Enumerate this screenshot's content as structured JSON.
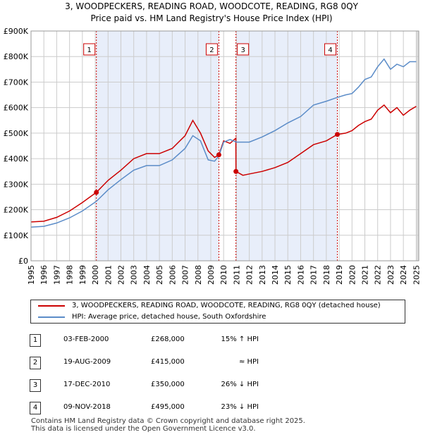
{
  "chart_data": {
    "type": "line",
    "title": "3, WOODPECKERS, READING ROAD, WOODCOTE, READING, RG8 0QY",
    "subtitle": "Price paid vs. HM Land Registry's House Price Index (HPI)",
    "ylim": [
      0,
      900000
    ],
    "xlim": [
      1995,
      2025.2
    ],
    "y_ticks": [
      {
        "value": 0,
        "label": "£0"
      },
      {
        "value": 100000,
        "label": "£100K"
      },
      {
        "value": 200000,
        "label": "£200K"
      },
      {
        "value": 300000,
        "label": "£300K"
      },
      {
        "value": 400000,
        "label": "£400K"
      },
      {
        "value": 500000,
        "label": "£500K"
      },
      {
        "value": 600000,
        "label": "£600K"
      },
      {
        "value": 700000,
        "label": "£700K"
      },
      {
        "value": 800000,
        "label": "£800K"
      },
      {
        "value": 900000,
        "label": "£900K"
      }
    ],
    "x_ticks": [
      "1995",
      "1996",
      "1997",
      "1998",
      "1999",
      "2000",
      "2001",
      "2002",
      "2003",
      "2004",
      "2005",
      "2006",
      "2007",
      "2008",
      "2009",
      "2010",
      "2011",
      "2012",
      "2013",
      "2014",
      "2015",
      "2016",
      "2017",
      "2018",
      "2019",
      "2020",
      "2021",
      "2022",
      "2023",
      "2024",
      "2025"
    ],
    "grid": true,
    "series": [
      {
        "name": "3, WOODPECKERS, READING ROAD, WOODCOTE, READING, RG8 0QY (detached house)",
        "color": "#cc0000",
        "x": [
          1995.0,
          1996.0,
          1997.0,
          1998.0,
          1999.0,
          2000.09,
          2001.0,
          2002.0,
          2003.0,
          2004.0,
          2005.0,
          2006.0,
          2007.0,
          2007.6,
          2008.2,
          2008.8,
          2009.3,
          2009.63,
          2010.0,
          2010.5,
          2010.95,
          2010.96,
          2011.5,
          2012.0,
          2013.0,
          2014.0,
          2015.0,
          2016.0,
          2017.0,
          2018.0,
          2018.86,
          2019.5,
          2020.0,
          2020.5,
          2021.0,
          2021.5,
          2022.0,
          2022.5,
          2023.0,
          2023.5,
          2024.0,
          2024.5,
          2025.0
        ],
        "y": [
          152000,
          155000,
          170000,
          195000,
          228000,
          268000,
          315000,
          355000,
          400000,
          420000,
          420000,
          440000,
          490000,
          550000,
          500000,
          430000,
          405000,
          415000,
          470000,
          460000,
          480000,
          350000,
          335000,
          340000,
          350000,
          365000,
          385000,
          420000,
          455000,
          470000,
          495000,
          500000,
          510000,
          530000,
          545000,
          555000,
          590000,
          610000,
          580000,
          600000,
          570000,
          590000,
          605000
        ]
      },
      {
        "name": "HPI: Average price, detached house, South Oxfordshire",
        "color": "#5b8cc8",
        "x": [
          1995.0,
          1996.0,
          1997.0,
          1998.0,
          1999.0,
          2000.09,
          2001.0,
          2002.0,
          2003.0,
          2004.0,
          2005.0,
          2006.0,
          2007.0,
          2007.6,
          2008.2,
          2008.8,
          2009.3,
          2009.63,
          2010.0,
          2010.5,
          2011.0,
          2012.0,
          2013.0,
          2014.0,
          2015.0,
          2016.0,
          2017.0,
          2018.0,
          2018.86,
          2019.5,
          2020.0,
          2020.5,
          2021.0,
          2021.5,
          2022.0,
          2022.5,
          2023.0,
          2023.5,
          2024.0,
          2024.5,
          2025.0
        ],
        "y": [
          132000,
          135000,
          148000,
          168000,
          195000,
          233000,
          278000,
          318000,
          355000,
          373000,
          373000,
          395000,
          440000,
          490000,
          470000,
          395000,
          390000,
          410000,
          465000,
          475000,
          465000,
          465000,
          485000,
          510000,
          540000,
          565000,
          610000,
          625000,
          640000,
          650000,
          655000,
          680000,
          710000,
          720000,
          760000,
          790000,
          750000,
          770000,
          760000,
          780000,
          780000
        ]
      }
    ],
    "markers": [
      {
        "label": "1",
        "x": 2000.09,
        "y": 268000
      },
      {
        "label": "2",
        "x": 2009.63,
        "y": 415000
      },
      {
        "label": "3",
        "x": 2010.96,
        "y": 350000
      },
      {
        "label": "4",
        "x": 2018.86,
        "y": 495000
      }
    ]
  },
  "legend": {
    "property_label": "3, WOODPECKERS, READING ROAD, WOODCOTE, READING, RG8 0QY (detached house)",
    "hpi_label": "HPI: Average price, detached house, South Oxfordshire"
  },
  "sales": [
    {
      "num": "1",
      "date": "03-FEB-2000",
      "price": "£268,000",
      "hpi": "15% ↑ HPI"
    },
    {
      "num": "2",
      "date": "19-AUG-2009",
      "price": "£415,000",
      "hpi": "≈ HPI"
    },
    {
      "num": "3",
      "date": "17-DEC-2010",
      "price": "£350,000",
      "hpi": "26% ↓ HPI"
    },
    {
      "num": "4",
      "date": "09-NOV-2018",
      "price": "£495,000",
      "hpi": "23% ↓ HPI"
    }
  ],
  "footer": {
    "line1": "Contains HM Land Registry data © Crown copyright and database right 2025.",
    "line2": "This data is licensed under the Open Government Licence v3.0."
  }
}
